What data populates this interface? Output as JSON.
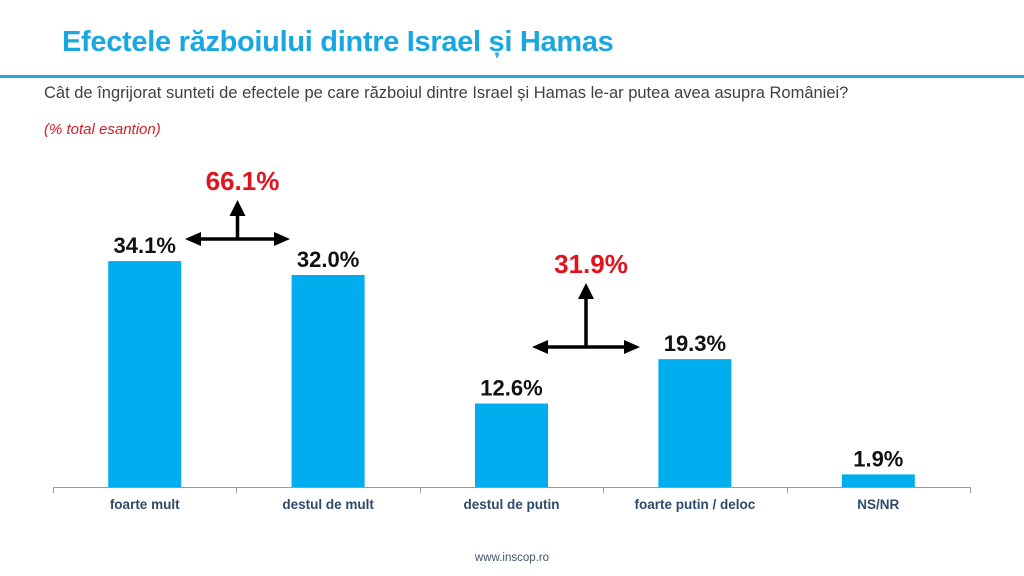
{
  "header": {
    "title": "Efectele războiului dintre Israel și Hamas",
    "question": "Cât de îngrijorat sunteti de efectele pe care războiul dintre Israel și Hamas le-ar putea avea asupra României?",
    "subtitle": "(% total esantion)"
  },
  "footer": {
    "url": "www.inscop.ro"
  },
  "colors": {
    "bar": "#00aeef",
    "title": "#1aa7e0",
    "aggregate": "#e0141e",
    "axis": "#999999"
  },
  "chart_data": {
    "type": "bar",
    "title": "Efectele războiului dintre Israel și Hamas",
    "xlabel": "",
    "ylabel": "",
    "ylim": [
      0,
      40
    ],
    "grid": false,
    "categories": [
      "foarte mult",
      "destul de mult",
      "destul de putin",
      "foarte putin / deloc",
      "NS/NR"
    ],
    "values": [
      34.1,
      32.0,
      12.6,
      19.3,
      1.9
    ],
    "value_labels": [
      "34.1%",
      "32.0%",
      "12.6%",
      "19.3%",
      "1.9%"
    ],
    "annotations": [
      {
        "label": "66.1%",
        "spans": [
          "foarte mult",
          "destul de mult"
        ],
        "value": 66.1
      },
      {
        "label": "31.9%",
        "spans": [
          "destul de putin",
          "foarte putin / deloc"
        ],
        "value": 31.9
      }
    ]
  }
}
